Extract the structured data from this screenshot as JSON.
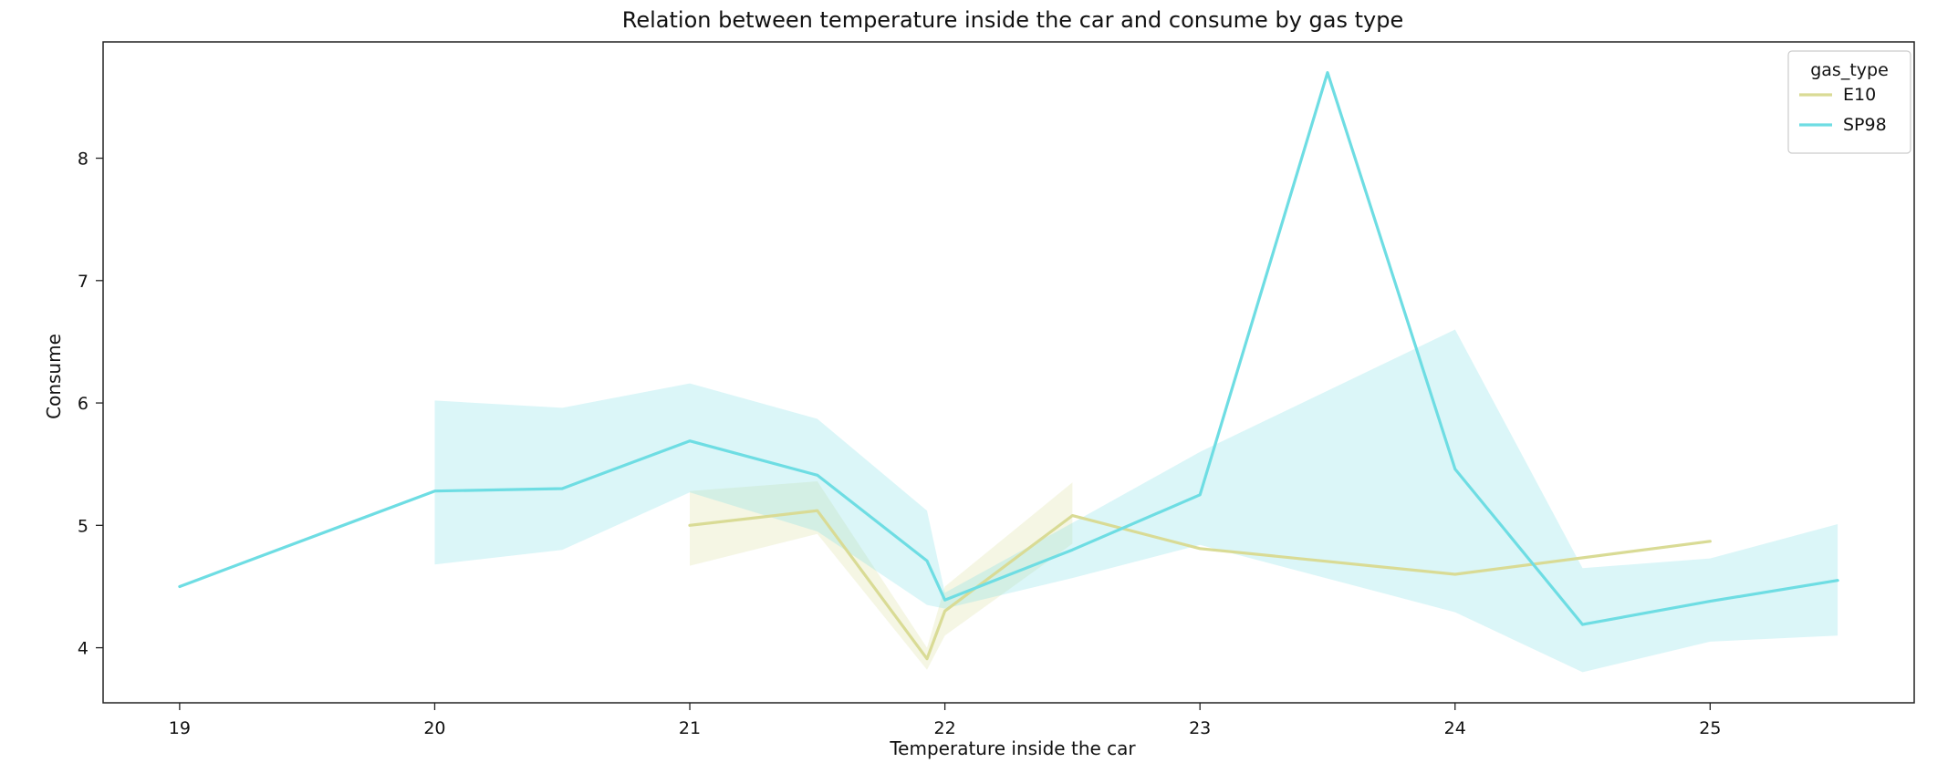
{
  "chart_data": {
    "type": "line",
    "title": "Relation between temperature inside the car and consume by gas type",
    "xlabel": "Temperature inside the car",
    "ylabel": "Consume",
    "xlim": [
      18.7,
      25.8
    ],
    "ylim": [
      3.55,
      8.95
    ],
    "xticks": [
      19,
      20,
      21,
      22,
      23,
      24,
      25
    ],
    "yticks": [
      4,
      5,
      6,
      7,
      8
    ],
    "grid": false,
    "legend": {
      "title": "gas_type",
      "placement": "top-right"
    },
    "series": [
      {
        "name": "E10",
        "color": "#d9db95",
        "x": [
          21,
          21.5,
          21.93,
          22,
          22.5,
          23,
          24,
          25
        ],
        "y": [
          5.0,
          5.12,
          3.91,
          4.3,
          5.08,
          4.81,
          4.6,
          4.87
        ],
        "ci_x": [
          21,
          21.5,
          21.93,
          22,
          22.5,
          22.5
        ],
        "ci_low": [
          4.67,
          4.93,
          3.82,
          4.1,
          4.85,
          4.85
        ],
        "ci_high": [
          5.28,
          5.36,
          4.0,
          4.5,
          5.35,
          5.35
        ]
      },
      {
        "name": "SP98",
        "color": "#6edde3",
        "x": [
          19,
          20,
          20.5,
          21,
          21.5,
          21.93,
          22,
          22.5,
          23,
          23.5,
          24,
          24.5,
          25,
          25.5
        ],
        "y": [
          4.5,
          5.28,
          5.3,
          5.69,
          5.41,
          4.71,
          4.39,
          4.8,
          5.25,
          8.7,
          5.46,
          4.19,
          4.38,
          4.55
        ],
        "ci_x": [
          20,
          20.5,
          21,
          21.5,
          21.93,
          22,
          22.5,
          23,
          23,
          24,
          24,
          24.5,
          25,
          25.5
        ],
        "ci_low": [
          4.68,
          4.8,
          5.27,
          4.95,
          4.35,
          4.32,
          4.57,
          4.84,
          4.84,
          4.29,
          4.29,
          3.8,
          4.05,
          4.1
        ],
        "ci_high": [
          6.02,
          5.96,
          6.16,
          5.87,
          5.12,
          4.45,
          5.02,
          5.6,
          5.6,
          6.6,
          6.6,
          4.65,
          4.73,
          5.01
        ]
      }
    ]
  }
}
